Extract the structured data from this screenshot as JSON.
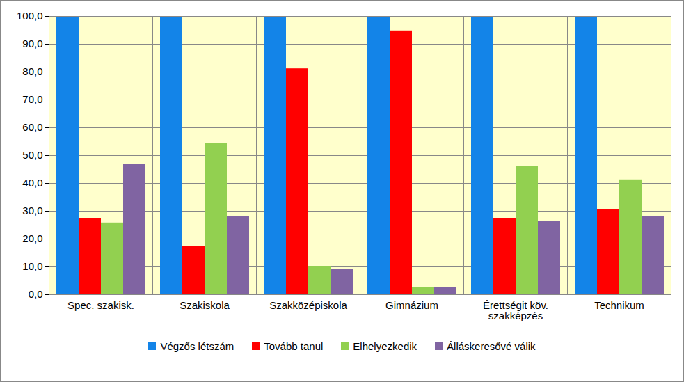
{
  "chart_data": {
    "type": "bar",
    "categories": [
      "Spec. szakisk.",
      "Szakiskola",
      "Szakközépiskola",
      "Gimnázium",
      "Érettségit köv.\nszakképzés",
      "Technikum"
    ],
    "series": [
      {
        "name": "Végzős létszám",
        "color": "#1384E8",
        "values": [
          100,
          100,
          100,
          100,
          100,
          100
        ]
      },
      {
        "name": "Tovább tanul",
        "color": "#FF0000",
        "values": [
          27.5,
          17.5,
          81.2,
          94.8,
          27.5,
          30.5
        ]
      },
      {
        "name": "Elhelyezkedik",
        "color": "#92D050",
        "values": [
          25.8,
          54.5,
          10,
          2.7,
          46.2,
          41.3
        ]
      },
      {
        "name": "Álláskeresővé válik",
        "color": "#8064A2",
        "values": [
          47,
          28.2,
          9,
          2.7,
          26.5,
          28.2
        ]
      }
    ],
    "ylim": [
      0,
      100
    ],
    "yticks": [
      {
        "value": 0,
        "label": "0,0"
      },
      {
        "value": 10,
        "label": "10,0"
      },
      {
        "value": 20,
        "label": "20,0"
      },
      {
        "value": 30,
        "label": "30,0"
      },
      {
        "value": 40,
        "label": "40,0"
      },
      {
        "value": 50,
        "label": "50,0"
      },
      {
        "value": 60,
        "label": "60,0"
      },
      {
        "value": 70,
        "label": "70,0"
      },
      {
        "value": 80,
        "label": "80,0"
      },
      {
        "value": 90,
        "label": "90,0"
      },
      {
        "value": 100,
        "label": "100,0"
      }
    ],
    "grid": true,
    "legend": "bottom"
  }
}
